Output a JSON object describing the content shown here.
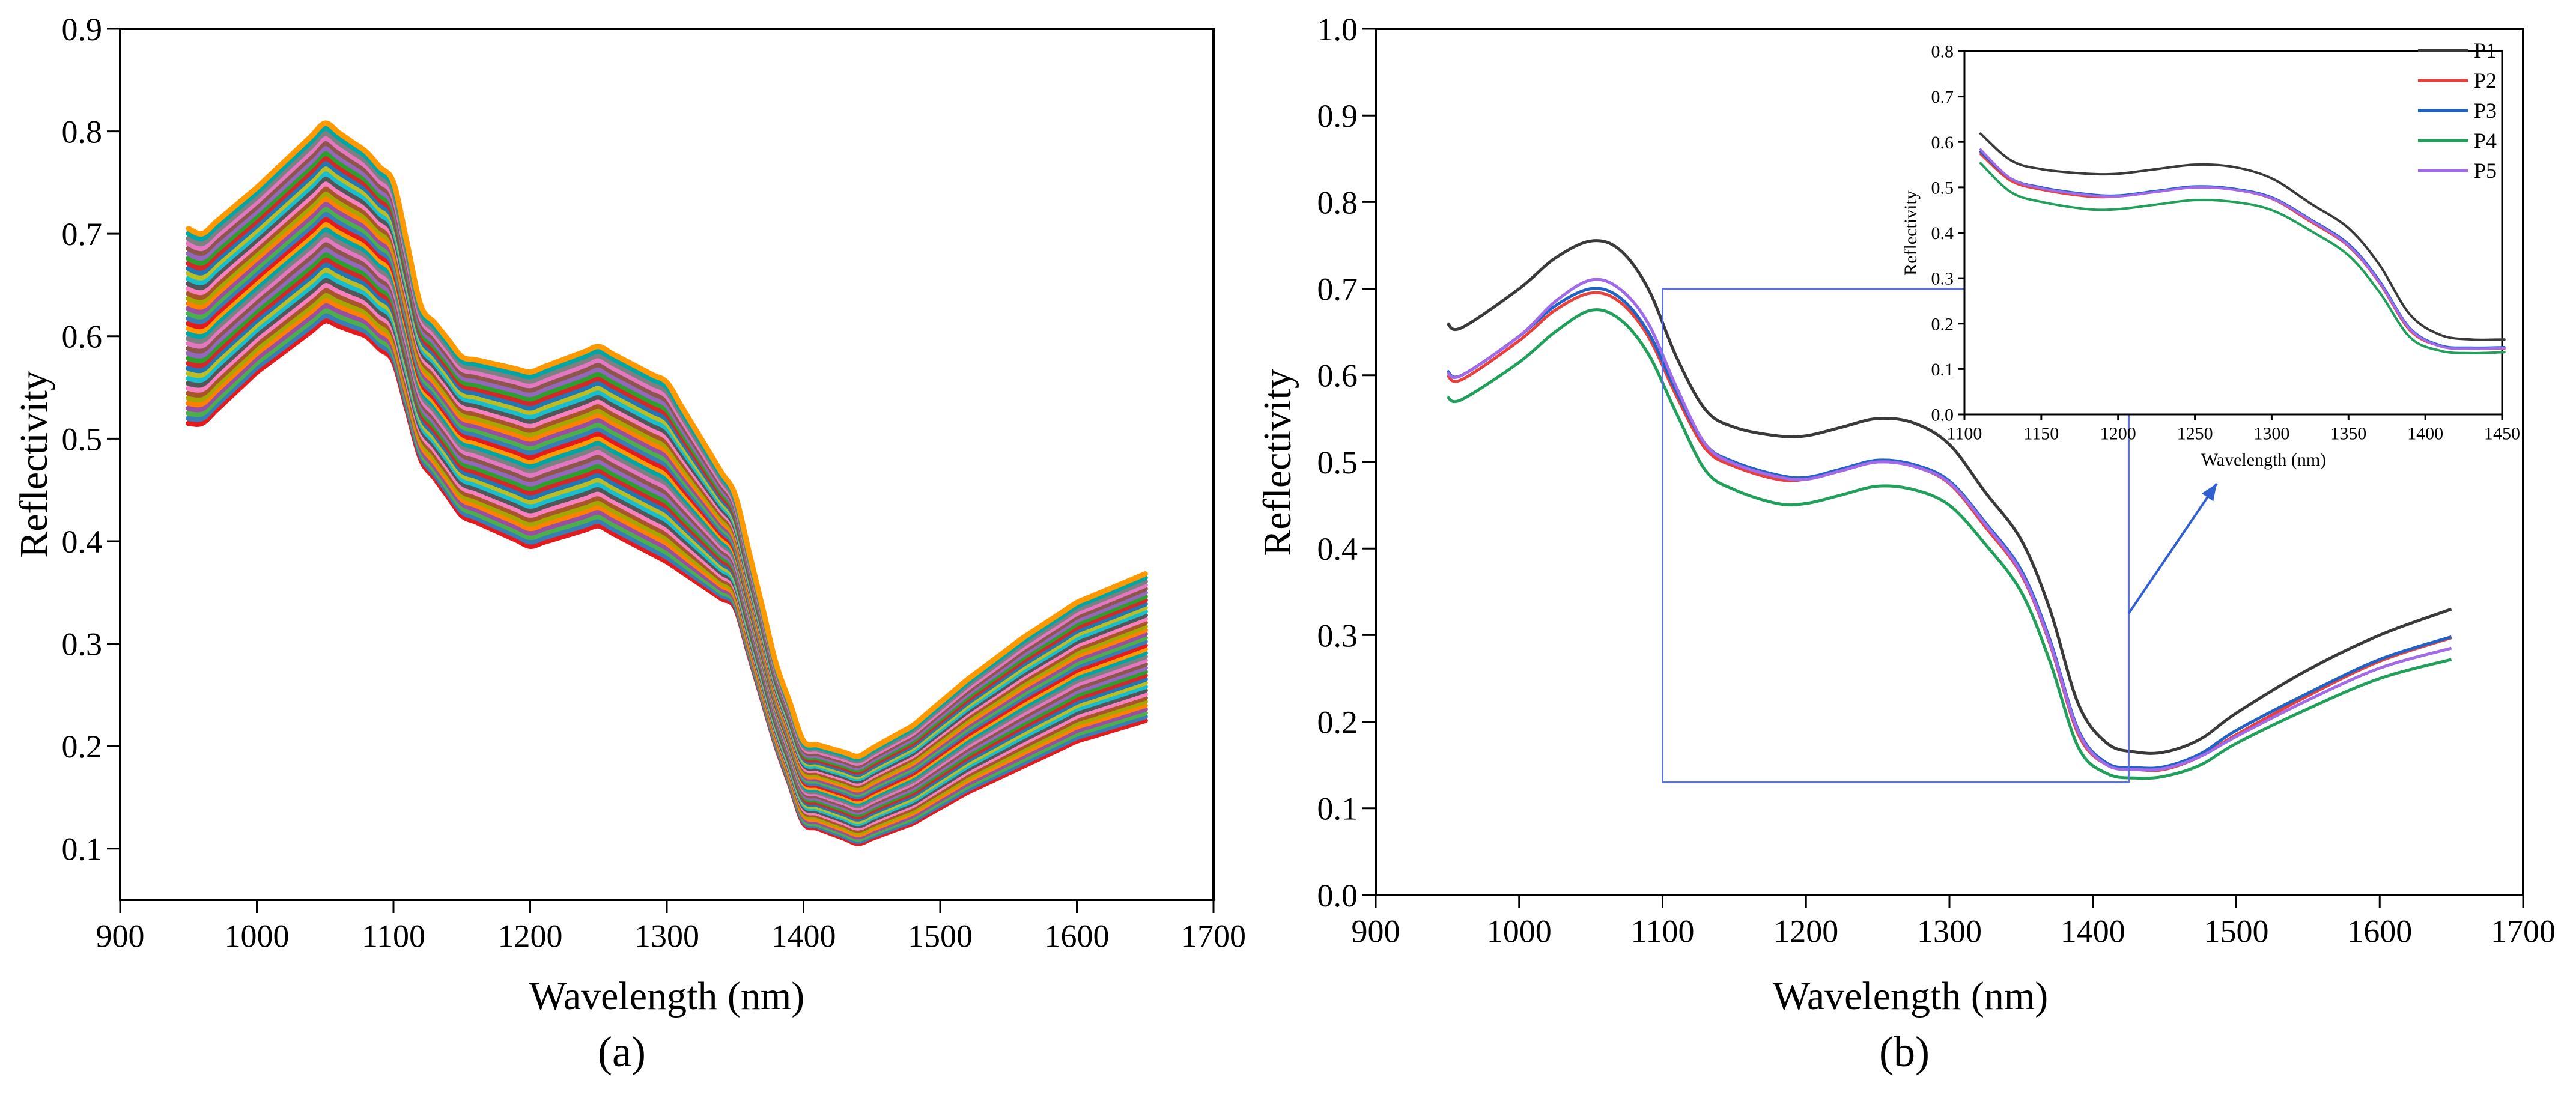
{
  "chart_data": [
    {
      "type": "line",
      "panel_label": "(a)",
      "xlabel": "Wavelength (nm)",
      "ylabel": "Reflectivity",
      "xlim": [
        900,
        1700
      ],
      "ylim": [
        0.05,
        0.9
      ],
      "x_ticks": [
        900,
        1000,
        1100,
        1200,
        1300,
        1400,
        1500,
        1600,
        1700
      ],
      "y_ticks": [
        0.1,
        0.2,
        0.3,
        0.4,
        0.5,
        0.6,
        0.7,
        0.8,
        0.9
      ],
      "grid": false,
      "legend": "none",
      "series_count": 40,
      "x_range": [
        950,
        1650
      ],
      "upper_envelope": {
        "x": [
          950,
          960,
          1000,
          1050,
          1080,
          1100,
          1120,
          1150,
          1200,
          1250,
          1300,
          1350,
          1380,
          1400,
          1440,
          1480,
          1520,
          1560,
          1600,
          1650
        ],
        "y": [
          0.705,
          0.7,
          0.745,
          0.808,
          0.78,
          0.75,
          0.63,
          0.58,
          0.565,
          0.59,
          0.555,
          0.445,
          0.28,
          0.205,
          0.19,
          0.22,
          0.265,
          0.305,
          0.34,
          0.368
        ]
      },
      "lower_envelope": {
        "x": [
          950,
          960,
          1000,
          1050,
          1080,
          1100,
          1120,
          1150,
          1200,
          1250,
          1300,
          1350,
          1380,
          1400,
          1440,
          1480,
          1520,
          1560,
          1600,
          1650
        ],
        "y": [
          0.515,
          0.515,
          0.565,
          0.615,
          0.6,
          0.575,
          0.48,
          0.425,
          0.395,
          0.415,
          0.38,
          0.335,
          0.2,
          0.125,
          0.105,
          0.125,
          0.155,
          0.18,
          0.205,
          0.225
        ]
      },
      "colors": [
        "#e41a1c",
        "#377eb8",
        "#4daf4a",
        "#984ea3",
        "#ff7f00",
        "#a6a600",
        "#a65628",
        "#f781bf",
        "#555555",
        "#17becf",
        "#bcbd22",
        "#1f77b4",
        "#d62728",
        "#2ca02c",
        "#9467bd",
        "#8c564b",
        "#e377c2",
        "#7f7f7f",
        "#00a6a6",
        "#ff9900"
      ]
    },
    {
      "type": "line",
      "panel_label": "(b)",
      "xlabel": "Wavelength (nm)",
      "ylabel": "Reflectivity",
      "xlim": [
        900,
        1700
      ],
      "ylim": [
        0.0,
        1.0
      ],
      "x_ticks": [
        900,
        1000,
        1100,
        1200,
        1300,
        1400,
        1500,
        1600,
        1700
      ],
      "y_ticks": [
        0.0,
        0.1,
        0.2,
        0.3,
        0.4,
        0.5,
        0.6,
        0.7,
        0.8,
        0.9,
        1.0
      ],
      "grid": false,
      "legend": "top-right",
      "x": [
        950,
        960,
        1000,
        1025,
        1050,
        1070,
        1090,
        1110,
        1130,
        1150,
        1180,
        1200,
        1225,
        1250,
        1275,
        1300,
        1325,
        1350,
        1370,
        1390,
        1410,
        1430,
        1450,
        1475,
        1500,
        1550,
        1600,
        1650
      ],
      "series": [
        {
          "name": "P1",
          "color": "#3a3a3a",
          "values": [
            0.66,
            0.655,
            0.7,
            0.735,
            0.755,
            0.745,
            0.7,
            0.62,
            0.56,
            0.54,
            0.53,
            0.53,
            0.54,
            0.55,
            0.545,
            0.52,
            0.465,
            0.41,
            0.33,
            0.22,
            0.175,
            0.165,
            0.165,
            0.18,
            0.21,
            0.26,
            0.3,
            0.33
          ]
        },
        {
          "name": "P2",
          "color": "#e8403a",
          "values": [
            0.6,
            0.595,
            0.64,
            0.675,
            0.695,
            0.685,
            0.645,
            0.575,
            0.515,
            0.495,
            0.48,
            0.48,
            0.49,
            0.5,
            0.495,
            0.475,
            0.425,
            0.37,
            0.29,
            0.185,
            0.15,
            0.145,
            0.145,
            0.16,
            0.185,
            0.23,
            0.27,
            0.297
          ]
        },
        {
          "name": "P3",
          "color": "#1f63c6",
          "values": [
            0.605,
            0.6,
            0.645,
            0.68,
            0.7,
            0.69,
            0.65,
            0.58,
            0.52,
            0.5,
            0.485,
            0.482,
            0.492,
            0.502,
            0.497,
            0.478,
            0.43,
            0.375,
            0.295,
            0.19,
            0.152,
            0.147,
            0.148,
            0.163,
            0.19,
            0.233,
            0.272,
            0.298
          ]
        },
        {
          "name": "P4",
          "color": "#20a05a",
          "values": [
            0.575,
            0.572,
            0.615,
            0.65,
            0.675,
            0.665,
            0.625,
            0.555,
            0.49,
            0.468,
            0.452,
            0.452,
            0.462,
            0.472,
            0.468,
            0.45,
            0.405,
            0.35,
            0.27,
            0.17,
            0.14,
            0.135,
            0.137,
            0.15,
            0.175,
            0.215,
            0.25,
            0.272
          ]
        },
        {
          "name": "P5",
          "color": "#a06ae8",
          "values": [
            0.603,
            0.6,
            0.645,
            0.685,
            0.71,
            0.7,
            0.66,
            0.585,
            0.52,
            0.498,
            0.483,
            0.48,
            0.49,
            0.5,
            0.495,
            0.476,
            0.428,
            0.372,
            0.292,
            0.188,
            0.15,
            0.145,
            0.146,
            0.16,
            0.183,
            0.225,
            0.262,
            0.285
          ]
        }
      ],
      "zoom_box": {
        "x": [
          1100,
          1425
        ],
        "y": [
          0.13,
          0.7
        ]
      },
      "inset": {
        "xlabel": "Wavelength (nm)",
        "ylabel": "Reflectivity",
        "xlim": [
          1100,
          1450
        ],
        "ylim": [
          0.0,
          0.8
        ],
        "x_ticks": [
          1100,
          1150,
          1200,
          1250,
          1300,
          1350,
          1400,
          1450
        ],
        "y_ticks": [
          0.0,
          0.1,
          0.2,
          0.3,
          0.4,
          0.5,
          0.6,
          0.7,
          0.8
        ]
      }
    }
  ]
}
